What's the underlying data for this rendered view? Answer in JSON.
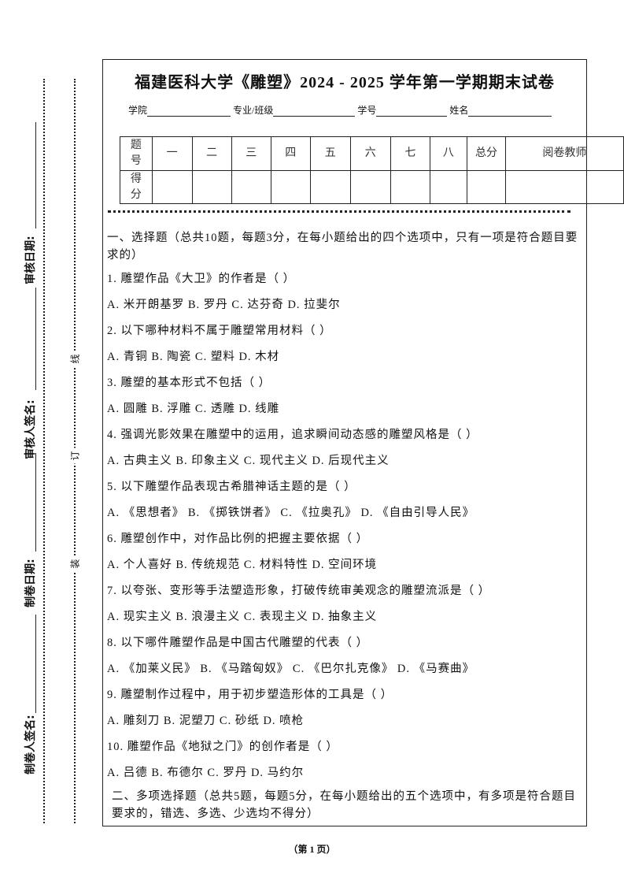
{
  "header": {
    "title": "福建医科大学《雕塑》2024 - 2025 学年第一学期期末试卷",
    "fields": [
      "学院",
      "专业/班级",
      "学号",
      "姓名"
    ]
  },
  "side": {
    "labels": [
      "审核日期:",
      "审核人签名:",
      "制卷日期:",
      "制卷人签名:"
    ],
    "binding": [
      "线",
      "订",
      "装"
    ]
  },
  "score_table": {
    "header": [
      "题号",
      "一",
      "二",
      "三",
      "四",
      "五",
      "六",
      "七",
      "八",
      "总分",
      "阅卷教师"
    ],
    "row_label": "得分"
  },
  "sections": [
    {
      "heading": "一、选择题（总共10题，每题3分，在每小题给出的四个选项中，只有一项是符合题目要求的）",
      "questions": [
        {
          "stem": "1. 雕塑作品《大卫》的作者是（  ）",
          "options": "A. 米开朗基罗  B. 罗丹  C. 达芬奇  D. 拉斐尔"
        },
        {
          "stem": "2. 以下哪种材料不属于雕塑常用材料（  ）",
          "options": "A. 青铜  B. 陶瓷  C. 塑料  D. 木材"
        },
        {
          "stem": "3. 雕塑的基本形式不包括（  ）",
          "options": "A. 圆雕  B. 浮雕  C. 透雕  D. 线雕"
        },
        {
          "stem": "4. 强调光影效果在雕塑中的运用，追求瞬间动态感的雕塑风格是（  ）",
          "options": "A. 古典主义  B. 印象主义  C. 现代主义  D. 后现代主义"
        },
        {
          "stem": "5. 以下雕塑作品表现古希腊神话主题的是（  ）",
          "options": "A. 《思想者》  B. 《掷铁饼者》  C. 《拉奥孔》  D. 《自由引导人民》"
        },
        {
          "stem": "6. 雕塑创作中，对作品比例的把握主要依据（  ）",
          "options": "A. 个人喜好  B. 传统规范  C. 材料特性  D. 空间环境"
        },
        {
          "stem": "7. 以夸张、变形等手法塑造形象，打破传统审美观念的雕塑流派是（  ）",
          "options": "A. 现实主义  B. 浪漫主义  C. 表现主义  D. 抽象主义"
        },
        {
          "stem": "8. 以下哪件雕塑作品是中国古代雕塑的代表（  ）",
          "options": "A. 《加莱义民》  B. 《马踏匈奴》  C. 《巴尔扎克像》  D. 《马赛曲》"
        },
        {
          "stem": "9. 雕塑制作过程中，用于初步塑造形体的工具是（  ）",
          "options": "A. 雕刻刀  B. 泥塑刀  C. 砂纸  D. 喷枪"
        },
        {
          "stem": "10. 雕塑作品《地狱之门》的创作者是（  ）",
          "options": "A. 吕德  B. 布德尔  C. 罗丹  D. 马约尔"
        }
      ]
    },
    {
      "heading": "二、多项选择题（总共5题，每题5分，在每小题给出的五个选项中，有多项是符合题目要求的，错选、多选、少选均不得分）"
    }
  ],
  "footer": "（第 1 页）"
}
